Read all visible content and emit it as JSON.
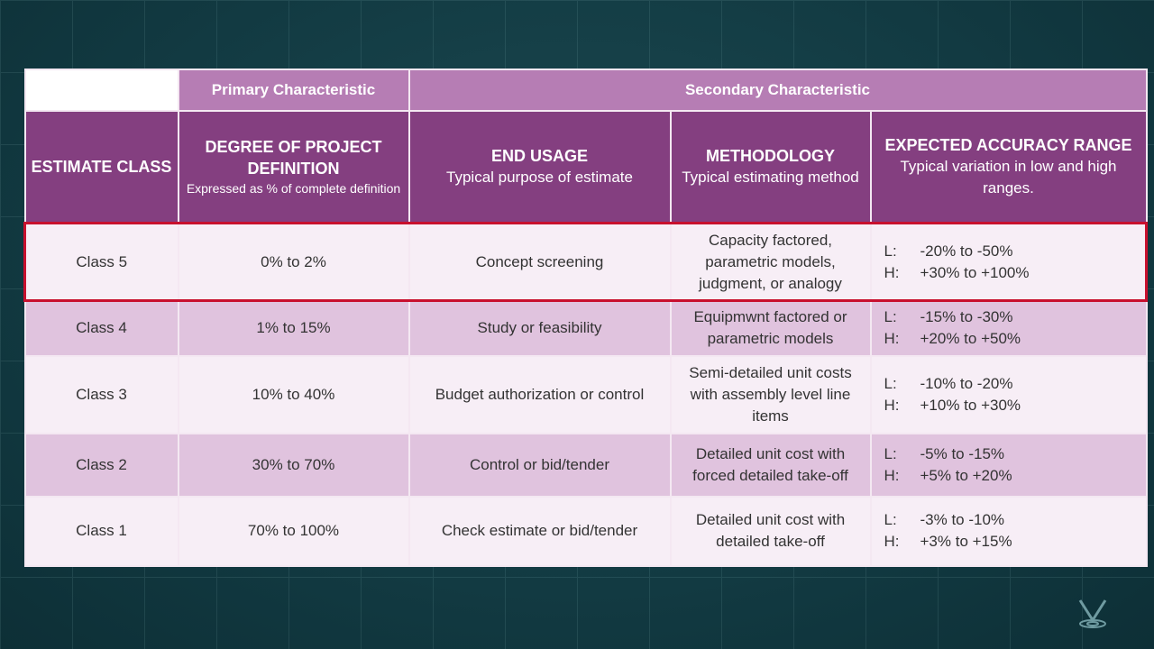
{
  "header_groups": {
    "primary": "Primary Characteristic",
    "secondary": "Secondary Characteristic"
  },
  "columns": [
    {
      "title": "ESTIMATE CLASS",
      "subtitle": ""
    },
    {
      "title": "DEGREE OF PROJECT DEFINITION",
      "subtitle": "Expressed as % of complete definition"
    },
    {
      "title": "END USAGE",
      "subtitle": "Typical purpose of estimate"
    },
    {
      "title": "METHODOLOGY",
      "subtitle": "Typical estimating method"
    },
    {
      "title": "EXPECTED ACCURACY RANGE",
      "subtitle": "Typical variation in low and high ranges."
    }
  ],
  "rows": [
    {
      "class": "Class 5",
      "definition": "0% to 2%",
      "usage": "Concept screening",
      "method": "Capacity factored, parametric models, judgment, or analogy",
      "low": "-20% to -50%",
      "high": "+30% to +100%",
      "highlighted": true
    },
    {
      "class": "Class 4",
      "definition": "1% to 15%",
      "usage": "Study or feasibility",
      "method": "Equipmwnt factored or parametric models",
      "low": "-15% to -30%",
      "high": "+20% to +50%"
    },
    {
      "class": "Class 3",
      "definition": "10% to 40%",
      "usage": "Budget authorization or control",
      "method": "Semi-detailed unit costs with assembly level line items",
      "low": "-10% to -20%",
      "high": "+10% to +30%"
    },
    {
      "class": "Class 2",
      "definition": "30% to 70%",
      "usage": "Control or bid/tender",
      "method": "Detailed unit cost with forced detailed take-off",
      "low": "-5% to -15%",
      "high": "+5% to +20%"
    },
    {
      "class": "Class 1",
      "definition": "70% to 100%",
      "usage": "Check estimate or bid/tender",
      "method": "Detailed unit cost with detailed take-off",
      "low": "-3% to -10%",
      "high": "+3% to +15%"
    }
  ],
  "labels": {
    "low": "L:",
    "high": "H:"
  },
  "colors": {
    "header_light": "#b67db4",
    "header_dark": "#843f80",
    "row_light": "#f7eef6",
    "row_dark": "#e0c3de",
    "highlight": "#c8102e",
    "background": "#123a42"
  },
  "logo_icon": "v-pin-logo-icon"
}
